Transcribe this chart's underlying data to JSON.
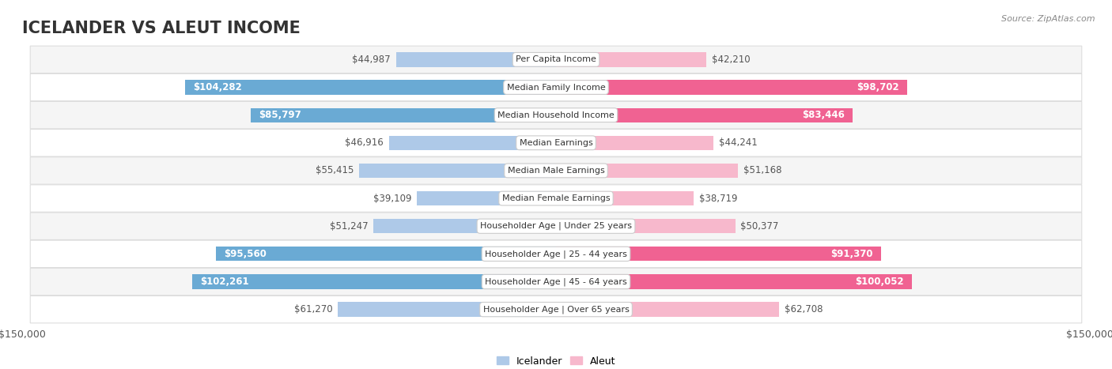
{
  "title": "ICELANDER VS ALEUT INCOME",
  "source": "Source: ZipAtlas.com",
  "categories": [
    "Per Capita Income",
    "Median Family Income",
    "Median Household Income",
    "Median Earnings",
    "Median Male Earnings",
    "Median Female Earnings",
    "Householder Age | Under 25 years",
    "Householder Age | 25 - 44 years",
    "Householder Age | 45 - 64 years",
    "Householder Age | Over 65 years"
  ],
  "icelander_values": [
    44987,
    104282,
    85797,
    46916,
    55415,
    39109,
    51247,
    95560,
    102261,
    61270
  ],
  "aleut_values": [
    42210,
    98702,
    83446,
    44241,
    51168,
    38719,
    50377,
    91370,
    100052,
    62708
  ],
  "icelander_labels": [
    "$44,987",
    "$104,282",
    "$85,797",
    "$46,916",
    "$55,415",
    "$39,109",
    "$51,247",
    "$95,560",
    "$102,261",
    "$61,270"
  ],
  "aleut_labels": [
    "$42,210",
    "$98,702",
    "$83,446",
    "$44,241",
    "$51,168",
    "$38,719",
    "$50,377",
    "$91,370",
    "$100,052",
    "$62,708"
  ],
  "icelander_color_light": "#aec9e8",
  "icelander_color_dark": "#6aaad4",
  "aleut_color_light": "#f7b8cc",
  "aleut_color_dark": "#f06292",
  "max_value": 150000,
  "bar_height": 0.52,
  "row_bg_even": "#f5f5f5",
  "row_bg_odd": "#ffffff",
  "title_fontsize": 15,
  "label_fontsize": 8.5,
  "category_fontsize": 8.0,
  "axis_label": "$150,000",
  "legend_icelander": "Icelander",
  "legend_aleut": "Aleut",
  "inside_threshold": 0.45
}
